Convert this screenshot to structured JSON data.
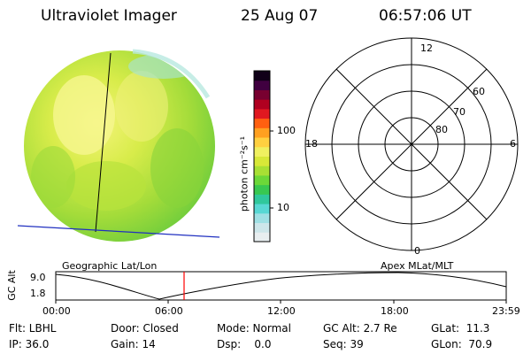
{
  "header": {
    "instrument": "Ultraviolet Imager",
    "date": "25 Aug 07",
    "time": "06:57:06 UT"
  },
  "colorbar": {
    "unit_label": "photon cm⁻²s⁻¹",
    "tick_100": "100",
    "tick_10": "10",
    "colors": [
      "#e8eef0",
      "#cde6ea",
      "#9fe0e4",
      "#58d8d4",
      "#30c89c",
      "#38c850",
      "#6cd838",
      "#a8e034",
      "#d8e838",
      "#f0f060",
      "#ffd040",
      "#ffa020",
      "#ff6010",
      "#e01820",
      "#b00020",
      "#780030",
      "#400040",
      "#100018"
    ]
  },
  "left_panel": {
    "label": "Geographic Lat/Lon"
  },
  "right_panel": {
    "label": "Apex MLat/MLT",
    "mlt_labels": {
      "top": "12",
      "left": "18",
      "right": "6",
      "bottom": "0"
    },
    "mlat_labels": [
      "60",
      "70",
      "80"
    ]
  },
  "timeline": {
    "ylabel": "GC Alt",
    "ytick_high": "9.0",
    "ytick_low": "1.8",
    "xticks": [
      "00:00",
      "06:00",
      "12:00",
      "18:00",
      "23:59"
    ],
    "marker_color": "#ff0000"
  },
  "status": {
    "flt": "Flt: LBHL",
    "ip": "IP: 36.0",
    "door": "Door: Closed",
    "gain": "Gain: 14",
    "mode": "Mode: Normal",
    "dsp": "Dsp:    0.0",
    "gcalt": "GC Alt: 2.7 Re",
    "seq": "Seq: 39",
    "glat": "GLat:  11.3",
    "glon": "GLon:  70.9"
  }
}
